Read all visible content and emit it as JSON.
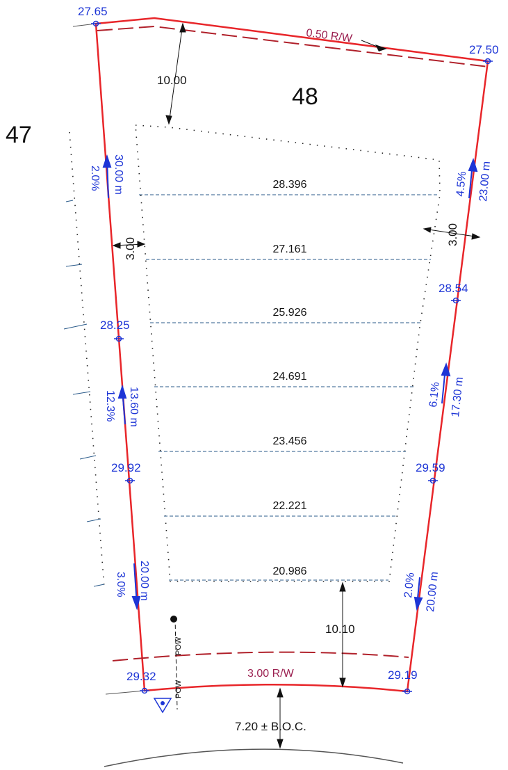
{
  "lots": {
    "current": "48",
    "adjacent": "47"
  },
  "corner_elevations": {
    "top_left": "27.65",
    "top_right": "27.50",
    "left_mid_upper": "28.25",
    "left_mid_lower": "29.92",
    "bottom_left": "29.32",
    "right_mid_upper": "28.54",
    "right_mid_lower": "29.59",
    "bottom_right": "29.19"
  },
  "right_of_way": {
    "rear": "0.50  R/W",
    "front": "3.00  R/W"
  },
  "setbacks": {
    "rear": "10.00",
    "front": "10.10",
    "side_left": "3.00",
    "side_right": "3.00",
    "boc": "7.20 ± B.O.C."
  },
  "slopes": {
    "left_upper": {
      "grade": "2.0%",
      "length": "30.00 m"
    },
    "left_middle": {
      "grade": "12.3%",
      "length": "13.60 m"
    },
    "left_lower": {
      "grade": "3.0%",
      "length": "20.00 m"
    },
    "right_upper": {
      "grade": "4.5%",
      "length": "23.00 m"
    },
    "right_middle": {
      "grade": "6.1%",
      "length": "17.30 m"
    },
    "right_lower": {
      "grade": "2.0%",
      "length": "20.00 m"
    }
  },
  "contours": [
    "28.396",
    "27.161",
    "25.926",
    "24.691",
    "23.456",
    "22.221",
    "20.986"
  ],
  "utility": {
    "label_a": "POW",
    "label_b": "POW"
  },
  "colors": {
    "lot_line": "#e8262a",
    "row_line": "#b0202a",
    "elevation_text": "#1d35d6",
    "row_text": "#9b2050",
    "contour_line": "#2a5a8a"
  }
}
